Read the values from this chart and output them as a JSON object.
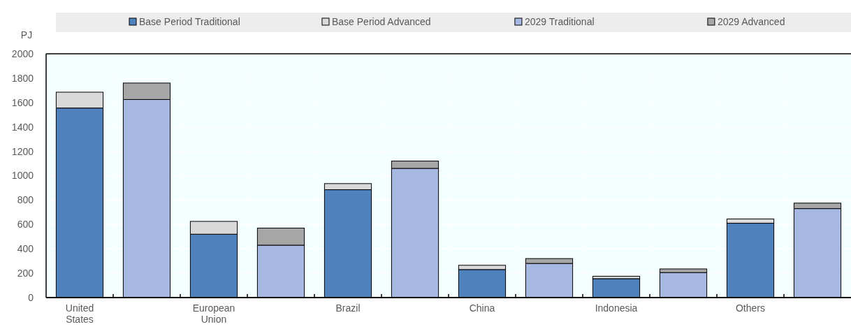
{
  "chart_data": {
    "type": "bar",
    "stacked": true,
    "ylabel": "PJ",
    "categories": [
      "United States",
      null,
      "European Union",
      null,
      "Brazil",
      null,
      "China",
      null,
      "Indonesia",
      null,
      "Others",
      null
    ],
    "series": [
      {
        "name": "Base Period Traditional",
        "color": "#4f81bd",
        "values": [
          1555,
          null,
          520,
          null,
          885,
          null,
          230,
          null,
          155,
          null,
          610,
          null
        ]
      },
      {
        "name": "Base Period Advanced",
        "color": "#d9d9d9",
        "values": [
          130,
          null,
          105,
          null,
          50,
          null,
          35,
          null,
          20,
          null,
          35,
          null
        ]
      },
      {
        "name": "2029 Traditional",
        "color": "#a7b8e2",
        "values": [
          null,
          1625,
          null,
          430,
          null,
          1060,
          null,
          280,
          null,
          205,
          null,
          730
        ]
      },
      {
        "name": "2029 Advanced",
        "color": "#a6a6a6",
        "values": [
          null,
          135,
          null,
          140,
          null,
          60,
          null,
          40,
          null,
          30,
          null,
          45
        ]
      }
    ],
    "ylim": [
      0,
      2000
    ],
    "yticks": [
      0,
      200,
      400,
      600,
      800,
      1000,
      1200,
      1400,
      1600,
      1800,
      2000
    ],
    "grid": true,
    "legend": "top"
  }
}
